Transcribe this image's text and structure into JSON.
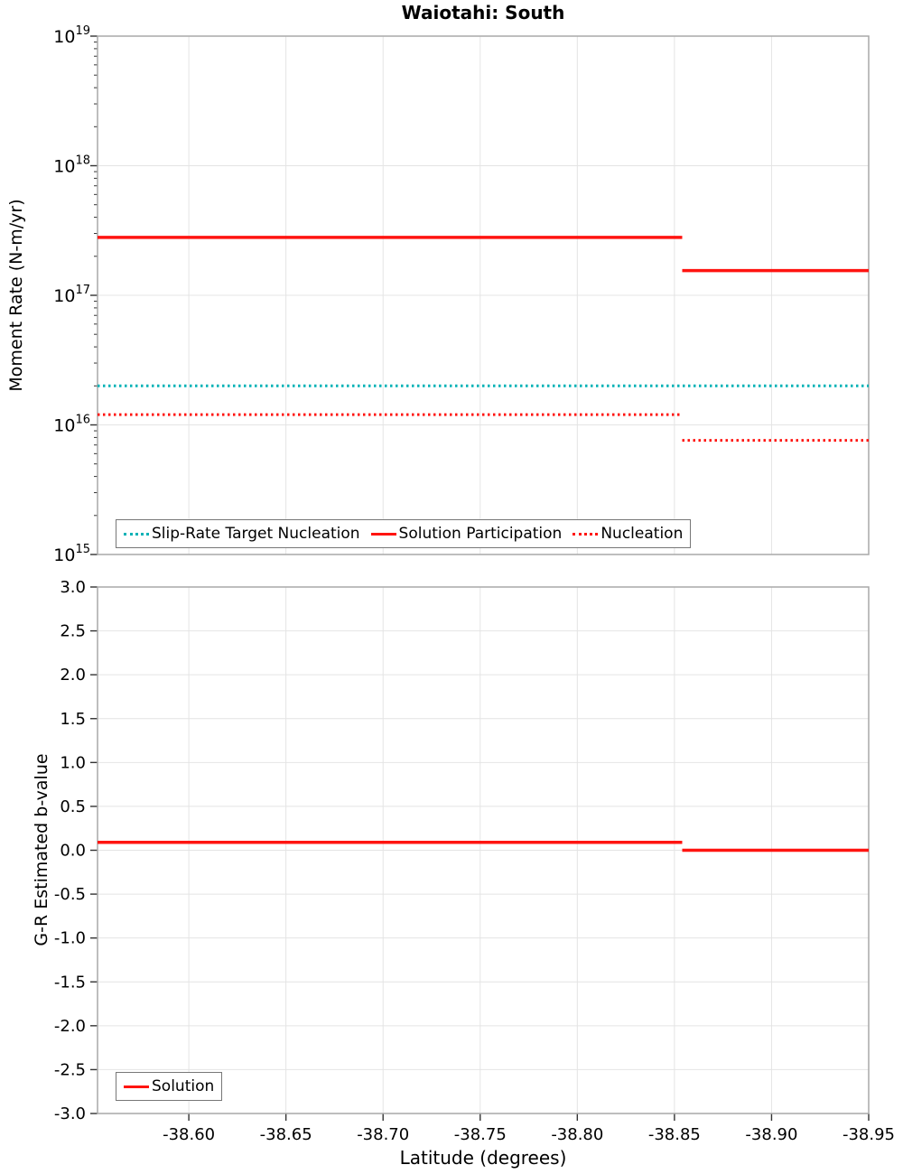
{
  "title": "Waiotahi: South",
  "colors": {
    "red": "#ff1410",
    "teal": "#00b2b6",
    "grid": "#e4e4e4",
    "frame": "#a9a9a9",
    "tick": "#333333"
  },
  "xaxis": {
    "label": "Latitude (degrees)",
    "min": -38.553,
    "max": -38.95,
    "ticks": [
      -38.6,
      -38.65,
      -38.7,
      -38.75,
      -38.8,
      -38.85,
      -38.9,
      -38.95
    ],
    "tick_labels": [
      "-38.60",
      "-38.65",
      "-38.70",
      "-38.75",
      "-38.80",
      "-38.85",
      "-38.90",
      "-38.95"
    ]
  },
  "chart_data": [
    {
      "type": "line",
      "id": "moment-rate",
      "title": "Waiotahi: South",
      "ylabel": "Moment Rate (N-m/yr)",
      "yscale": "log",
      "ylim_exp": [
        15,
        19
      ],
      "grid": true,
      "legend_position": "bottom-left-inside",
      "series": [
        {
          "id": "slip-rate-target-nucleation",
          "name": "Slip-Rate Target Nucleation",
          "color": "#00b2b6",
          "style": "dotted",
          "width": 3,
          "segments": [
            [
              [
                -38.553,
                2e+16
              ],
              [
                -38.95,
                2e+16
              ]
            ]
          ]
        },
        {
          "id": "solution-participation",
          "name": "Solution Participation",
          "color": "#ff1410",
          "style": "solid",
          "width": 3.5,
          "segments": [
            [
              [
                -38.553,
                2.8e+17
              ],
              [
                -38.854,
                2.8e+17
              ]
            ],
            [
              [
                -38.854,
                1.55e+17
              ],
              [
                -38.95,
                1.55e+17
              ]
            ]
          ]
        },
        {
          "id": "nucleation",
          "name": "Nucleation",
          "color": "#ff1410",
          "style": "dotted",
          "width": 3,
          "segments": [
            [
              [
                -38.553,
                1.2e+16
              ],
              [
                -38.854,
                1.2e+16
              ]
            ],
            [
              [
                -38.854,
                7600000000000000.0
              ],
              [
                -38.95,
                7600000000000000.0
              ]
            ]
          ]
        }
      ]
    },
    {
      "type": "line",
      "id": "b-value",
      "ylabel": "G-R Estimated b-value",
      "yscale": "linear",
      "ylim": [
        -3.0,
        3.0
      ],
      "ytick_step": 0.5,
      "grid": true,
      "legend_position": "bottom-left-inside",
      "series": [
        {
          "id": "solution",
          "name": "Solution",
          "color": "#ff1410",
          "style": "solid",
          "width": 3.5,
          "segments": [
            [
              [
                -38.553,
                0.09
              ],
              [
                -38.854,
                0.09
              ]
            ],
            [
              [
                -38.854,
                0.0
              ],
              [
                -38.95,
                0.0
              ]
            ]
          ]
        }
      ]
    }
  ]
}
